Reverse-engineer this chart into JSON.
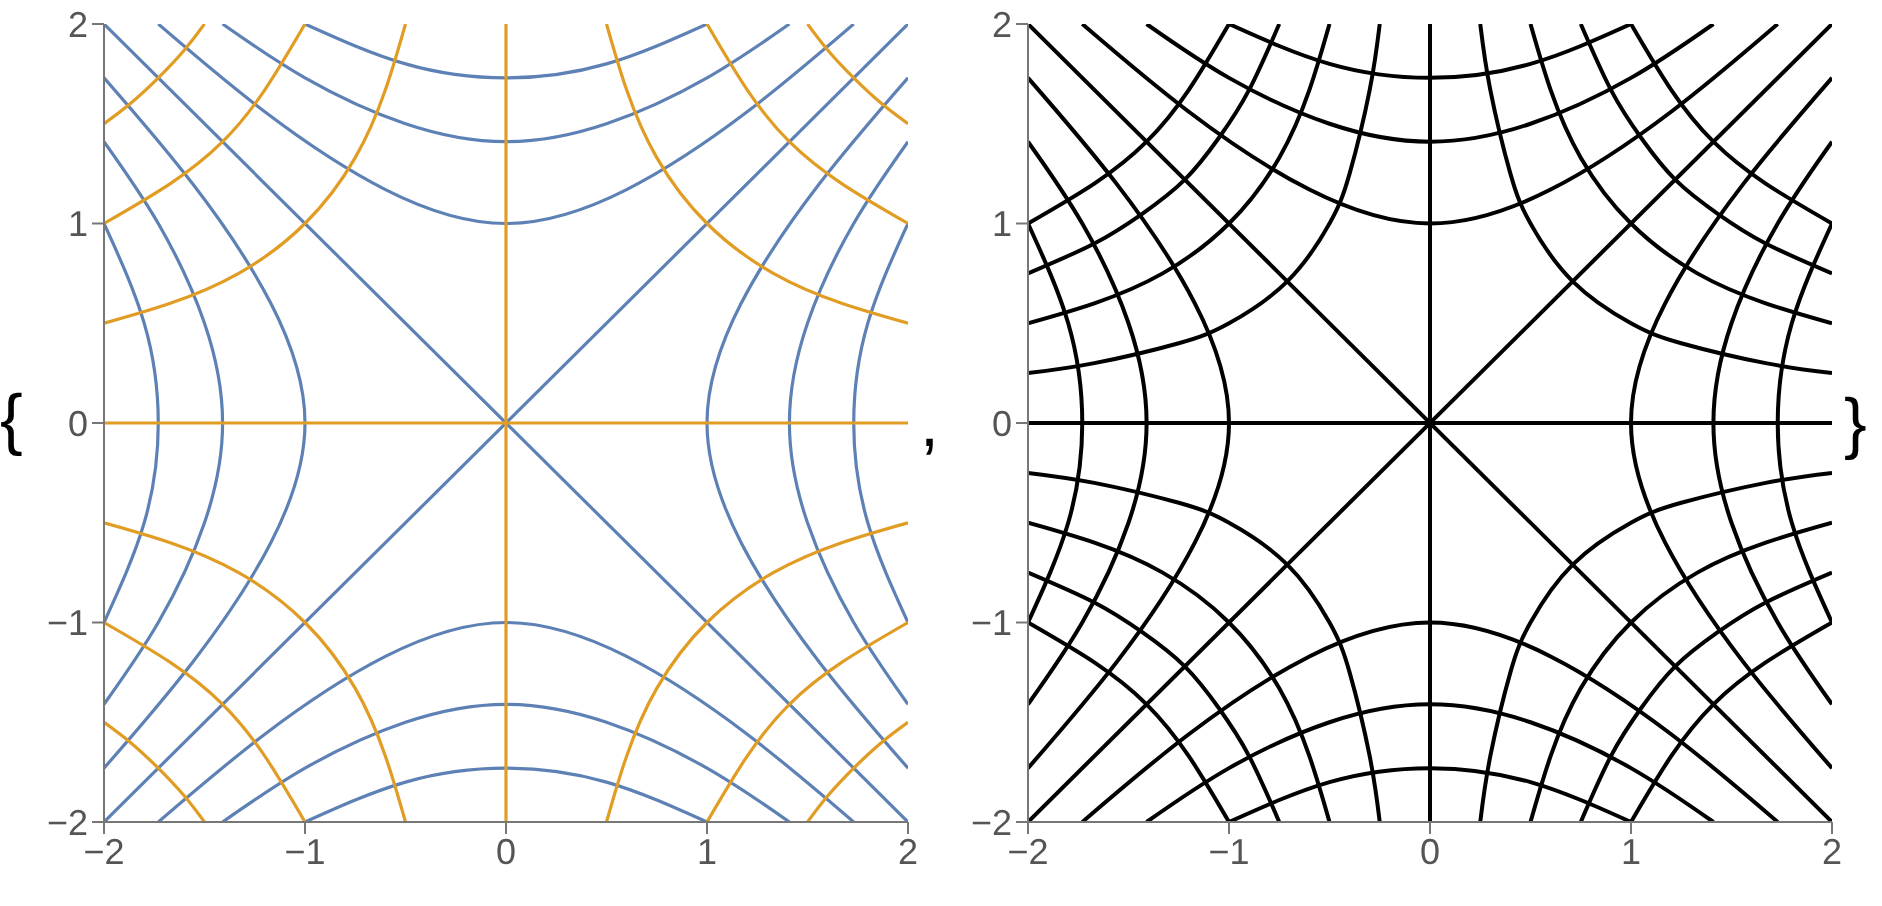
{
  "chart_data": [
    {
      "type": "line",
      "annotations": [
        "{",
        ","
      ],
      "xlim": [
        -2,
        2
      ],
      "ylim": [
        -2,
        2
      ],
      "xticks": [
        -2,
        -1,
        0,
        1,
        2
      ],
      "yticks": [
        -2,
        -1,
        0,
        1,
        2
      ],
      "marker": "none",
      "line_style": "solid",
      "grid": false,
      "legend": false,
      "series": [
        {
          "color": "#5e81b5",
          "x": [
            2,
            1.56,
            1.17,
            1,
            1.17,
            1.56,
            2
          ],
          "values": [
            -1.73,
            -1.2,
            -0.6,
            0,
            0.6,
            1.2,
            1.73
          ]
        },
        {
          "color": "#5e81b5",
          "x": [
            -2,
            -1.56,
            -1.17,
            -1,
            -1.17,
            -1.56,
            -2
          ],
          "values": [
            -1.73,
            -1.2,
            -0.6,
            0,
            0.6,
            1.2,
            1.73
          ]
        },
        {
          "color": "#5e81b5",
          "x": [
            2,
            1.73,
            1.5,
            1.41,
            1.5,
            1.73,
            2
          ],
          "values": [
            -1.41,
            -1,
            -0.5,
            0,
            0.5,
            1,
            1.41
          ]
        },
        {
          "color": "#5e81b5",
          "x": [
            -2,
            -1.73,
            -1.5,
            -1.41,
            -1.5,
            -1.73,
            -2
          ],
          "values": [
            -1.41,
            -1,
            -0.5,
            0,
            0.5,
            1,
            1.41
          ]
        },
        {
          "color": "#5e81b5",
          "x": [
            2,
            1.8,
            1.73,
            1.8,
            2
          ],
          "values": [
            -1,
            -0.5,
            0,
            0.5,
            1
          ]
        },
        {
          "color": "#5e81b5",
          "x": [
            -2,
            -1.8,
            -1.73,
            -1.8,
            -2
          ],
          "values": [
            -1,
            -0.5,
            0,
            0.5,
            1
          ]
        },
        {
          "color": "#5e81b5",
          "x": [
            -1.73,
            -1.2,
            -0.6,
            0,
            0.6,
            1.2,
            1.73
          ],
          "values": [
            2,
            1.56,
            1.17,
            1,
            1.17,
            1.56,
            2
          ]
        },
        {
          "color": "#5e81b5",
          "x": [
            -1.73,
            -1.2,
            -0.6,
            0,
            0.6,
            1.2,
            1.73
          ],
          "values": [
            -2,
            -1.56,
            -1.17,
            -1,
            -1.17,
            -1.56,
            -2
          ]
        },
        {
          "color": "#5e81b5",
          "x": [
            -1.41,
            -1,
            -0.5,
            0,
            0.5,
            1,
            1.41
          ],
          "values": [
            2,
            1.73,
            1.5,
            1.41,
            1.5,
            1.73,
            2
          ]
        },
        {
          "color": "#5e81b5",
          "x": [
            -1.41,
            -1,
            -0.5,
            0,
            0.5,
            1,
            1.41
          ],
          "values": [
            -2,
            -1.73,
            -1.5,
            -1.41,
            -1.5,
            -1.73,
            -2
          ]
        },
        {
          "color": "#5e81b5",
          "x": [
            -1,
            -0.5,
            0,
            0.5,
            1
          ],
          "values": [
            2,
            1.8,
            1.73,
            1.8,
            2
          ]
        },
        {
          "color": "#5e81b5",
          "x": [
            -1,
            -0.5,
            0,
            0.5,
            1
          ],
          "values": [
            -2,
            -1.8,
            -1.73,
            -1.8,
            -2
          ]
        },
        {
          "color": "#5e81b5",
          "x": [
            -2,
            2
          ],
          "values": [
            -2,
            2
          ]
        },
        {
          "color": "#5e81b5",
          "x": [
            -2,
            2
          ],
          "values": [
            2,
            -2
          ]
        },
        {
          "color": "#e19c24",
          "x": [
            -2,
            2
          ],
          "values": [
            0,
            0
          ]
        },
        {
          "color": "#e19c24",
          "x": [
            0,
            0
          ],
          "values": [
            -2,
            2
          ]
        },
        {
          "color": "#e19c24",
          "x": [
            0.5,
            0.6,
            0.75,
            1,
            1.33,
            1.67,
            2
          ],
          "values": [
            2,
            1.67,
            1.33,
            1,
            0.75,
            0.6,
            0.5
          ]
        },
        {
          "color": "#e19c24",
          "x": [
            -0.5,
            -0.6,
            -0.75,
            -1,
            -1.33,
            -1.67,
            -2
          ],
          "values": [
            -2,
            -1.67,
            -1.33,
            -1,
            -0.75,
            -0.6,
            -0.5
          ]
        },
        {
          "color": "#e19c24",
          "x": [
            -0.5,
            -0.6,
            -0.75,
            -1,
            -1.33,
            -1.67,
            -2
          ],
          "values": [
            2,
            1.67,
            1.33,
            1,
            0.75,
            0.6,
            0.5
          ]
        },
        {
          "color": "#e19c24",
          "x": [
            0.5,
            0.6,
            0.75,
            1,
            1.33,
            1.67,
            2
          ],
          "values": [
            -2,
            -1.67,
            -1.33,
            -1,
            -0.75,
            -0.6,
            -0.5
          ]
        },
        {
          "color": "#e19c24",
          "x": [
            1,
            1.2,
            1.41,
            1.67,
            2
          ],
          "values": [
            2,
            1.67,
            1.41,
            1.2,
            1
          ]
        },
        {
          "color": "#e19c24",
          "x": [
            -1,
            -1.2,
            -1.41,
            -1.67,
            -2
          ],
          "values": [
            -2,
            -1.67,
            -1.41,
            -1.2,
            -1
          ]
        },
        {
          "color": "#e19c24",
          "x": [
            -1,
            -1.2,
            -1.41,
            -1.67,
            -2
          ],
          "values": [
            2,
            1.67,
            1.41,
            1.2,
            1
          ]
        },
        {
          "color": "#e19c24",
          "x": [
            1,
            1.2,
            1.41,
            1.67,
            2
          ],
          "values": [
            -2,
            -1.67,
            -1.41,
            -1.2,
            -1
          ]
        },
        {
          "color": "#e19c24",
          "x": [
            1.5,
            1.6,
            1.73,
            1.87,
            2
          ],
          "values": [
            2,
            1.87,
            1.73,
            1.6,
            1.5
          ]
        },
        {
          "color": "#e19c24",
          "x": [
            -1.5,
            -1.6,
            -1.73,
            -1.87,
            -2
          ],
          "values": [
            -2,
            -1.87,
            -1.73,
            -1.6,
            -1.5
          ]
        },
        {
          "color": "#e19c24",
          "x": [
            -1.5,
            -1.6,
            -1.73,
            -1.87,
            -2
          ],
          "values": [
            2,
            1.87,
            1.73,
            1.6,
            1.5
          ]
        },
        {
          "color": "#e19c24",
          "x": [
            1.5,
            1.6,
            1.73,
            1.87,
            2
          ],
          "values": [
            -2,
            -1.87,
            -1.73,
            -1.6,
            -1.5
          ]
        }
      ]
    },
    {
      "type": "line",
      "annotations": [
        "}"
      ],
      "xlim": [
        -2,
        2
      ],
      "ylim": [
        -2,
        2
      ],
      "xticks": [
        -2,
        -1,
        0,
        1,
        2
      ],
      "yticks": [
        -2,
        -1,
        0,
        1,
        2
      ],
      "marker": "none",
      "line_style": "solid",
      "grid": false,
      "legend": false,
      "series": [
        {
          "color": "#000000",
          "x": [
            2,
            1.56,
            1.17,
            1,
            1.17,
            1.56,
            2
          ],
          "values": [
            -1.73,
            -1.2,
            -0.6,
            0,
            0.6,
            1.2,
            1.73
          ]
        },
        {
          "color": "#000000",
          "x": [
            -2,
            -1.56,
            -1.17,
            -1,
            -1.17,
            -1.56,
            -2
          ],
          "values": [
            -1.73,
            -1.2,
            -0.6,
            0,
            0.6,
            1.2,
            1.73
          ]
        },
        {
          "color": "#000000",
          "x": [
            2,
            1.73,
            1.5,
            1.41,
            1.5,
            1.73,
            2
          ],
          "values": [
            -1.41,
            -1,
            -0.5,
            0,
            0.5,
            1,
            1.41
          ]
        },
        {
          "color": "#000000",
          "x": [
            -2,
            -1.73,
            -1.5,
            -1.41,
            -1.5,
            -1.73,
            -2
          ],
          "values": [
            -1.41,
            -1,
            -0.5,
            0,
            0.5,
            1,
            1.41
          ]
        },
        {
          "color": "#000000",
          "x": [
            2,
            1.8,
            1.73,
            1.8,
            2
          ],
          "values": [
            -1,
            -0.5,
            0,
            0.5,
            1
          ]
        },
        {
          "color": "#000000",
          "x": [
            -2,
            -1.8,
            -1.73,
            -1.8,
            -2
          ],
          "values": [
            -1,
            -0.5,
            0,
            0.5,
            1
          ]
        },
        {
          "color": "#000000",
          "x": [
            -1.73,
            -1.2,
            -0.6,
            0,
            0.6,
            1.2,
            1.73
          ],
          "values": [
            2,
            1.56,
            1.17,
            1,
            1.17,
            1.56,
            2
          ]
        },
        {
          "color": "#000000",
          "x": [
            -1.73,
            -1.2,
            -0.6,
            0,
            0.6,
            1.2,
            1.73
          ],
          "values": [
            -2,
            -1.56,
            -1.17,
            -1,
            -1.17,
            -1.56,
            -2
          ]
        },
        {
          "color": "#000000",
          "x": [
            -1.41,
            -1,
            -0.5,
            0,
            0.5,
            1,
            1.41
          ],
          "values": [
            2,
            1.73,
            1.5,
            1.41,
            1.5,
            1.73,
            2
          ]
        },
        {
          "color": "#000000",
          "x": [
            -1.41,
            -1,
            -0.5,
            0,
            0.5,
            1,
            1.41
          ],
          "values": [
            -2,
            -1.73,
            -1.5,
            -1.41,
            -1.5,
            -1.73,
            -2
          ]
        },
        {
          "color": "#000000",
          "x": [
            -1,
            -0.5,
            0,
            0.5,
            1
          ],
          "values": [
            2,
            1.8,
            1.73,
            1.8,
            2
          ]
        },
        {
          "color": "#000000",
          "x": [
            -1,
            -0.5,
            0,
            0.5,
            1
          ],
          "values": [
            -2,
            -1.8,
            -1.73,
            -1.8,
            -2
          ]
        },
        {
          "color": "#000000",
          "x": [
            -2,
            2
          ],
          "values": [
            -2,
            2
          ]
        },
        {
          "color": "#000000",
          "x": [
            -2,
            2
          ],
          "values": [
            2,
            -2
          ]
        },
        {
          "color": "#000000",
          "x": [
            -2,
            2
          ],
          "values": [
            0,
            0
          ]
        },
        {
          "color": "#000000",
          "x": [
            0,
            0
          ],
          "values": [
            -2,
            2
          ]
        },
        {
          "color": "#000000",
          "x": [
            0.25,
            0.3,
            0.4,
            0.5,
            0.71,
            1,
            1.25,
            1.67,
            2
          ],
          "values": [
            2,
            1.67,
            1.25,
            1,
            0.71,
            0.5,
            0.4,
            0.3,
            0.25
          ]
        },
        {
          "color": "#000000",
          "x": [
            -0.25,
            -0.3,
            -0.4,
            -0.5,
            -0.71,
            -1,
            -1.25,
            -1.67,
            -2
          ],
          "values": [
            -2,
            -1.67,
            -1.25,
            -1,
            -0.71,
            -0.5,
            -0.4,
            -0.3,
            -0.25
          ]
        },
        {
          "color": "#000000",
          "x": [
            -0.25,
            -0.3,
            -0.4,
            -0.5,
            -0.71,
            -1,
            -1.25,
            -1.67,
            -2
          ],
          "values": [
            2,
            1.67,
            1.25,
            1,
            0.71,
            0.5,
            0.4,
            0.3,
            0.25
          ]
        },
        {
          "color": "#000000",
          "x": [
            0.25,
            0.3,
            0.4,
            0.5,
            0.71,
            1,
            1.25,
            1.67,
            2
          ],
          "values": [
            -2,
            -1.67,
            -1.25,
            -1,
            -0.71,
            -0.5,
            -0.4,
            -0.3,
            -0.25
          ]
        },
        {
          "color": "#000000",
          "x": [
            0.5,
            0.6,
            0.75,
            1,
            1.33,
            1.67,
            2
          ],
          "values": [
            2,
            1.67,
            1.33,
            1,
            0.75,
            0.6,
            0.5
          ]
        },
        {
          "color": "#000000",
          "x": [
            -0.5,
            -0.6,
            -0.75,
            -1,
            -1.33,
            -1.67,
            -2
          ],
          "values": [
            -2,
            -1.67,
            -1.33,
            -1,
            -0.75,
            -0.6,
            -0.5
          ]
        },
        {
          "color": "#000000",
          "x": [
            -0.5,
            -0.6,
            -0.75,
            -1,
            -1.33,
            -1.67,
            -2
          ],
          "values": [
            2,
            1.67,
            1.33,
            1,
            0.75,
            0.6,
            0.5
          ]
        },
        {
          "color": "#000000",
          "x": [
            0.5,
            0.6,
            0.75,
            1,
            1.33,
            1.67,
            2
          ],
          "values": [
            -2,
            -1.67,
            -1.33,
            -1,
            -0.75,
            -0.6,
            -0.5
          ]
        },
        {
          "color": "#000000",
          "x": [
            0.75,
            0.9,
            1.05,
            1.22,
            1.43,
            1.67,
            2
          ],
          "values": [
            2,
            1.67,
            1.43,
            1.22,
            1.05,
            0.9,
            0.75
          ]
        },
        {
          "color": "#000000",
          "x": [
            -0.75,
            -0.9,
            -1.05,
            -1.22,
            -1.43,
            -1.67,
            -2
          ],
          "values": [
            -2,
            -1.67,
            -1.43,
            -1.22,
            -1.05,
            -0.9,
            -0.75
          ]
        },
        {
          "color": "#000000",
          "x": [
            -0.75,
            -0.9,
            -1.05,
            -1.22,
            -1.43,
            -1.67,
            -2
          ],
          "values": [
            2,
            1.67,
            1.43,
            1.22,
            1.05,
            0.9,
            0.75
          ]
        },
        {
          "color": "#000000",
          "x": [
            0.75,
            0.9,
            1.05,
            1.22,
            1.43,
            1.67,
            2
          ],
          "values": [
            -2,
            -1.67,
            -1.43,
            -1.22,
            -1.05,
            -0.9,
            -0.75
          ]
        },
        {
          "color": "#000000",
          "x": [
            1,
            1.2,
            1.41,
            1.67,
            2
          ],
          "values": [
            2,
            1.67,
            1.41,
            1.2,
            1
          ]
        },
        {
          "color": "#000000",
          "x": [
            -1,
            -1.2,
            -1.41,
            -1.67,
            -2
          ],
          "values": [
            -2,
            -1.67,
            -1.41,
            -1.2,
            -1
          ]
        },
        {
          "color": "#000000",
          "x": [
            -1,
            -1.2,
            -1.41,
            -1.67,
            -2
          ],
          "values": [
            2,
            1.67,
            1.41,
            1.2,
            1
          ]
        },
        {
          "color": "#000000",
          "x": [
            1,
            1.2,
            1.41,
            1.67,
            2
          ],
          "values": [
            -2,
            -1.67,
            -1.41,
            -1.2,
            -1
          ]
        }
      ]
    }
  ]
}
